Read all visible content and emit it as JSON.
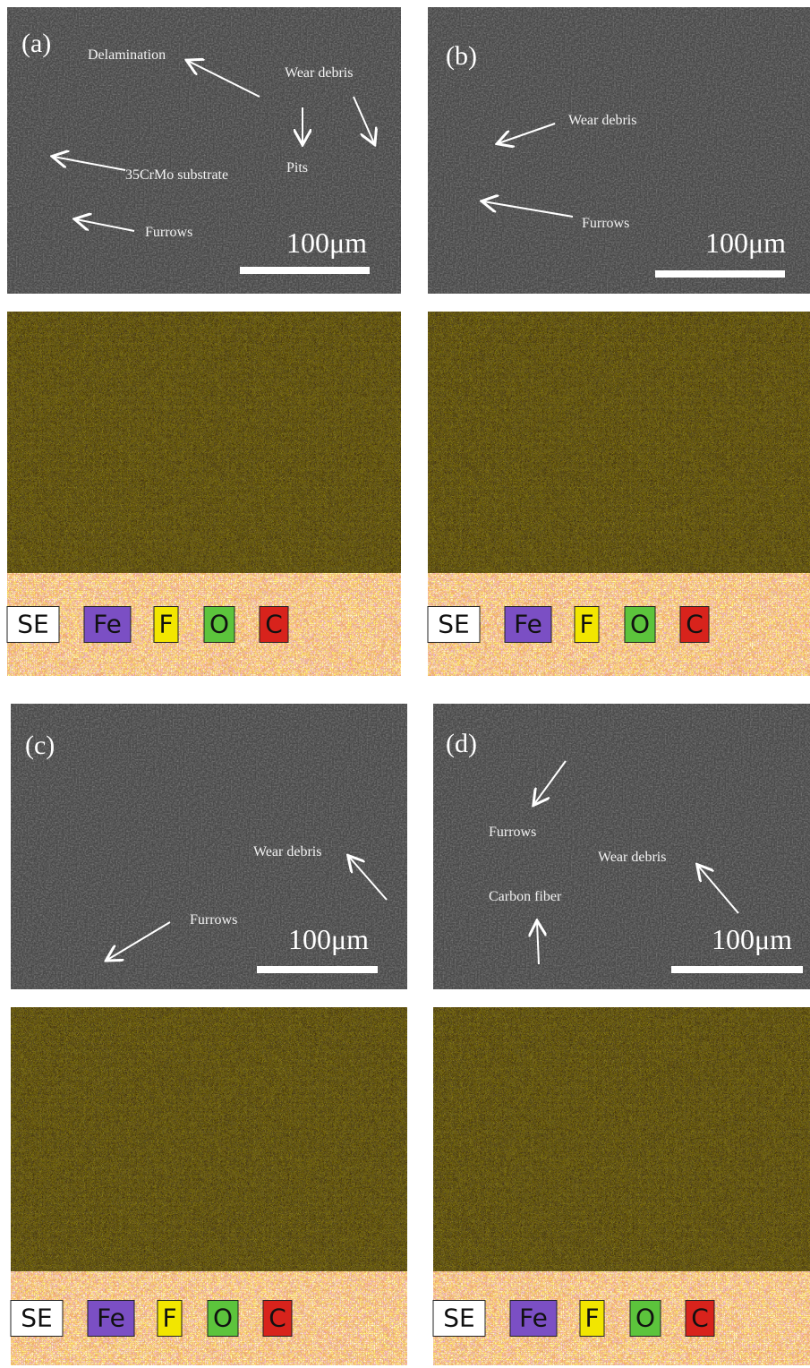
{
  "panels": [
    {
      "label": "(a)",
      "annotations": [
        "Delamination",
        "Wear debris",
        "Pits",
        "35CrMo substrate",
        "Furrows"
      ],
      "scale_bar": "100μm",
      "legend": [
        "SE",
        "Fe",
        "F",
        "O",
        "C"
      ]
    },
    {
      "label": "(b)",
      "annotations": [
        "Wear debris",
        "Furrows"
      ],
      "scale_bar": "100μm",
      "legend": [
        "SE",
        "Fe",
        "F",
        "O",
        "C"
      ]
    },
    {
      "label": "(c)",
      "annotations": [
        "Wear debris",
        "Furrows"
      ],
      "scale_bar": "100μm",
      "legend": [
        "SE",
        "Fe",
        "F",
        "O",
        "C"
      ]
    },
    {
      "label": "(d)",
      "annotations": [
        "Furrows",
        "Wear debris",
        "Carbon fiber"
      ],
      "scale_bar": "100μm",
      "legend": [
        "SE",
        "Fe",
        "F",
        "O",
        "C"
      ]
    }
  ]
}
